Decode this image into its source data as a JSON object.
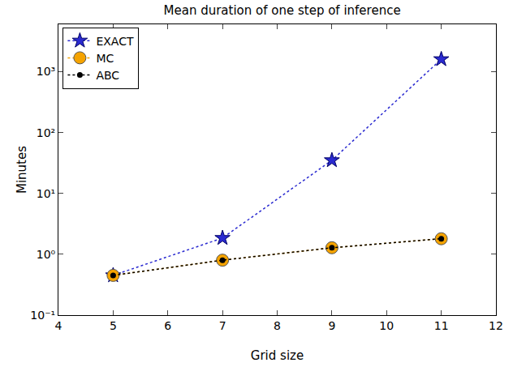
{
  "chart_data": {
    "type": "line",
    "title": "Mean duration of one step of inference",
    "x_label": "Grid size",
    "y_label": "Minutes",
    "x": [
      5,
      7,
      9,
      11
    ],
    "series": [
      {
        "name": "EXACT",
        "color": "#2a2ad0",
        "marker": "star",
        "line_style": "dotted",
        "values": [
          0.45,
          1.85,
          35,
          1600
        ]
      },
      {
        "name": "MC",
        "color": "#f5a300",
        "marker": "circle",
        "line_style": "dotted",
        "values": [
          0.45,
          0.8,
          1.28,
          1.8
        ]
      },
      {
        "name": "ABC",
        "color": "#000000",
        "marker": "circle",
        "line_style": "dotted",
        "values": [
          0.45,
          0.8,
          1.28,
          1.8
        ]
      }
    ],
    "xlim": [
      4,
      12
    ],
    "xticks": [
      4,
      5,
      6,
      7,
      8,
      9,
      10,
      11,
      12
    ],
    "ylim": [
      0.1,
      6000
    ],
    "yticks": [
      {
        "value": 0.1,
        "label": "10⁻¹"
      },
      {
        "value": 1,
        "label": "10⁰"
      },
      {
        "value": 10,
        "label": "10¹"
      },
      {
        "value": 100,
        "label": "10²"
      },
      {
        "value": 1000,
        "label": "10³"
      }
    ],
    "log": "y",
    "grid": false,
    "legend": "upper left"
  }
}
